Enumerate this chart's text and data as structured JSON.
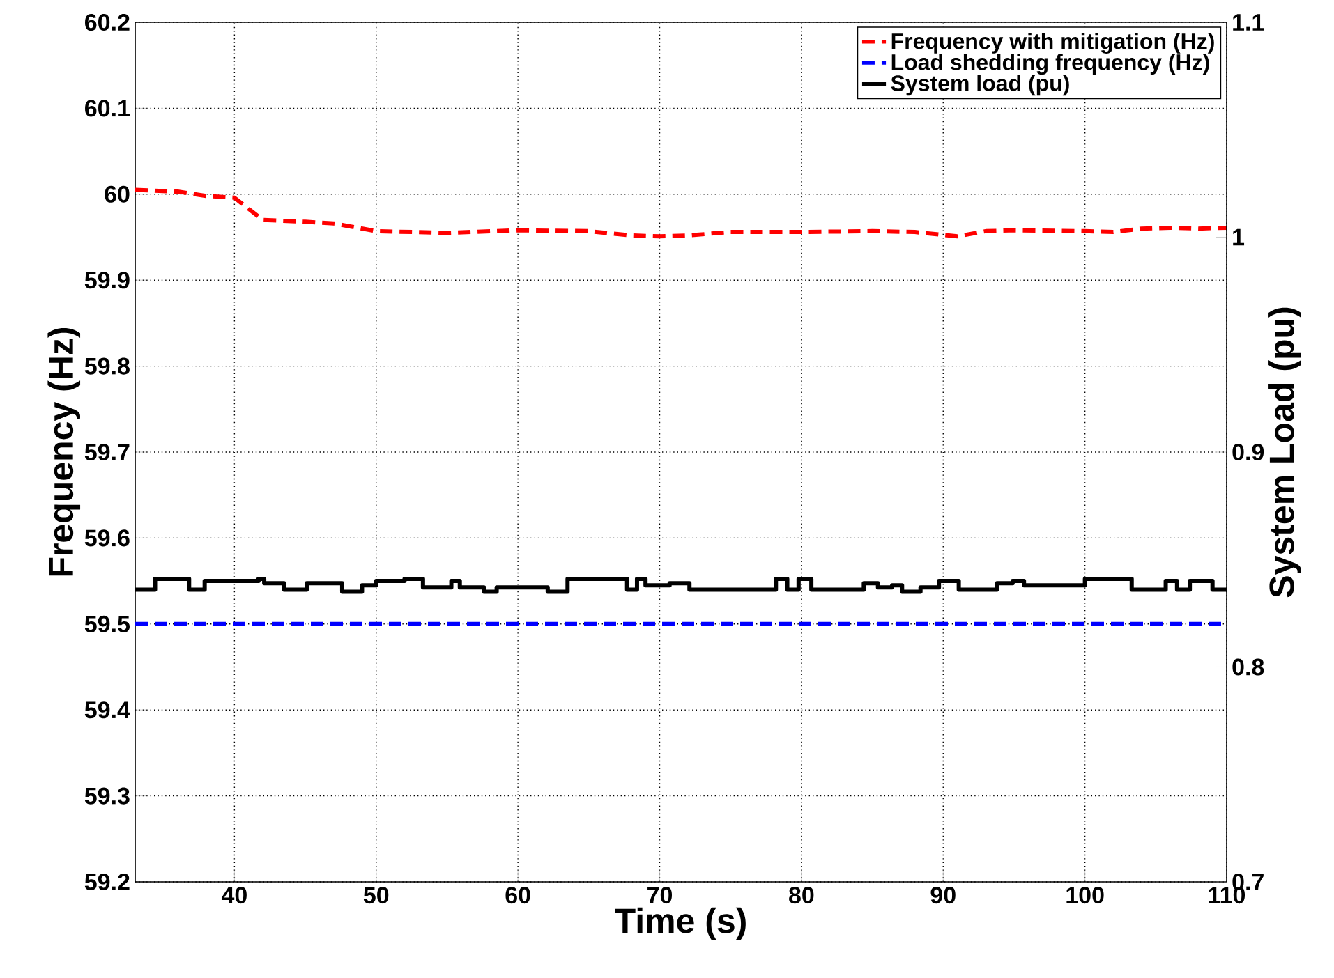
{
  "chart_data": {
    "type": "line",
    "xlabel": "Time (s)",
    "ylabel": "Frequency (Hz)",
    "y2label": "System Load (pu)",
    "xlim": [
      33,
      110
    ],
    "xticks": [
      40,
      50,
      60,
      70,
      80,
      90,
      100,
      110
    ],
    "ylim": [
      59.2,
      60.2
    ],
    "yticks": [
      59.2,
      59.3,
      59.4,
      59.5,
      59.6,
      59.7,
      59.8,
      59.9,
      60,
      60.1,
      60.2
    ],
    "y2lim": [
      0.7,
      1.1
    ],
    "y2ticks": [
      0.7,
      0.8,
      0.9,
      1,
      1.1
    ],
    "grid": true,
    "legend": "top right",
    "marker": "none",
    "series": [
      {
        "name": "Frequency with mitigation (Hz)",
        "color": "#ff0000",
        "line_style": "dashed",
        "x": [
          33,
          36,
          38,
          40,
          42,
          45,
          47,
          48,
          50,
          55,
          60,
          65,
          68,
          70,
          72,
          75,
          80,
          85,
          88,
          91,
          93,
          95,
          100,
          102,
          104,
          106,
          108,
          110
        ],
        "values": [
          60.005,
          60.003,
          59.998,
          59.996,
          59.97,
          59.968,
          59.966,
          59.963,
          59.957,
          59.955,
          59.958,
          59.957,
          59.952,
          59.951,
          59.952,
          59.956,
          59.956,
          59.957,
          59.956,
          59.951,
          59.957,
          59.958,
          59.957,
          59.956,
          59.96,
          59.961,
          59.96,
          59.961
        ]
      },
      {
        "name": "Load shedding frequency (Hz)",
        "color": "#0000ff",
        "line_style": "dashed",
        "x": [
          33,
          110
        ],
        "values": [
          59.5,
          59.5
        ]
      },
      {
        "name": "System load (pu)",
        "type": "step",
        "axis": "y2",
        "color": "#000000",
        "line_style": "solid",
        "x": [
          33,
          34.4,
          36.8,
          37.9,
          41.7,
          42.1,
          43.5,
          45.1,
          47.6,
          49.0,
          50.0,
          52.0,
          53.3,
          55.3,
          55.9,
          57.6,
          58.5,
          62.1,
          63.5,
          67.7,
          68.4,
          69.0,
          70.7,
          72.1,
          78.2,
          79.0,
          79.8,
          80.7,
          84.4,
          85.4,
          86.4,
          87.1,
          88.4,
          89.7,
          91.1,
          93.8,
          94.9,
          95.7,
          100.0,
          103.3,
          105.7,
          106.5,
          107.4,
          109.0,
          110
        ],
        "values": [
          0.836,
          0.841,
          0.836,
          0.84,
          0.841,
          0.839,
          0.836,
          0.839,
          0.835,
          0.838,
          0.84,
          0.841,
          0.837,
          0.84,
          0.837,
          0.835,
          0.837,
          0.835,
          0.841,
          0.836,
          0.841,
          0.838,
          0.839,
          0.836,
          0.841,
          0.836,
          0.841,
          0.836,
          0.839,
          0.837,
          0.838,
          0.835,
          0.837,
          0.84,
          0.836,
          0.839,
          0.84,
          0.838,
          0.841,
          0.836,
          0.84,
          0.836,
          0.84,
          0.836,
          0.836
        ]
      }
    ]
  }
}
